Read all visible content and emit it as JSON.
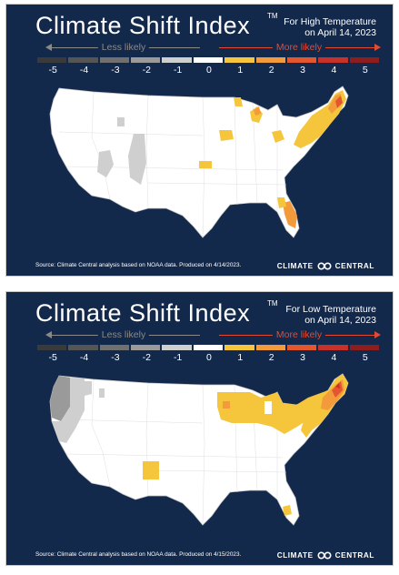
{
  "legend": {
    "less_label": "Less likely",
    "more_label": "More likely",
    "ticks": [
      "-5",
      "-4",
      "-3",
      "-2",
      "-1",
      "0",
      "1",
      "2",
      "3",
      "4",
      "5"
    ],
    "colors": [
      "#3a3a3a",
      "#555555",
      "#707070",
      "#9a9a9a",
      "#cfcfcf",
      "#ffffff",
      "#f5c53b",
      "#f39a3a",
      "#e4572e",
      "#c7312a",
      "#8e1d1d"
    ]
  },
  "panels": [
    {
      "title": "Climate Shift Index",
      "tm": "TM",
      "sub1": "For High Temperature",
      "sub2": "on April 14, 2023",
      "source": "Source: Climate Central analysis based on NOAA data. Produced on 4/14/2023.",
      "brand_left": "CLIMATE",
      "brand_right": "CENTRAL"
    },
    {
      "title": "Climate Shift Index",
      "tm": "TM",
      "sub1": "For Low Temperature",
      "sub2": "on April 14, 2023",
      "source": "Source: Climate Central analysis based on NOAA data. Produced on 4/15/2023.",
      "brand_left": "CLIMATE",
      "brand_right": "CENTRAL"
    }
  ]
}
